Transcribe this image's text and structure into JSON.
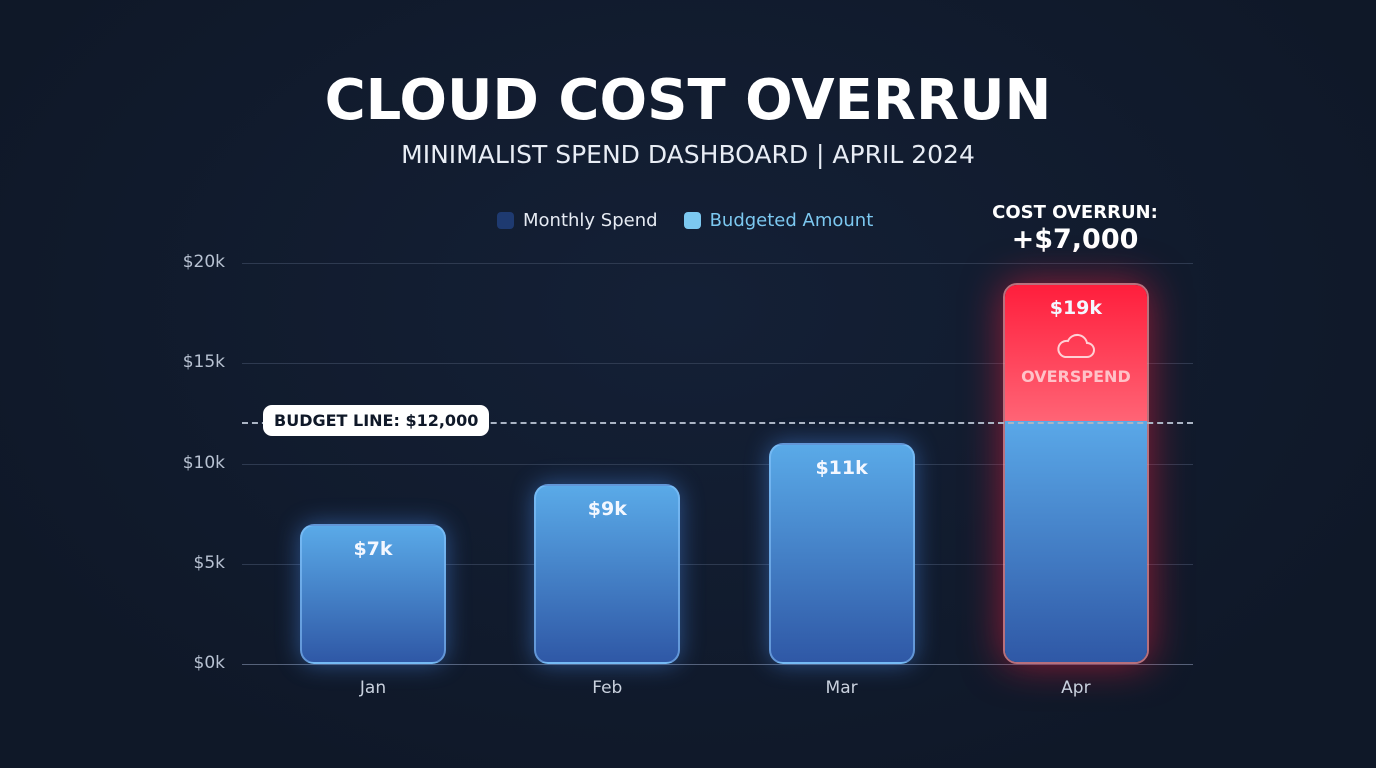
{
  "header": {
    "title": "CLOUD COST OVERRUN",
    "subtitle": "MINIMALIST SPEND DASHBOARD | APRIL 2024"
  },
  "callout": {
    "label": "COST OVERRUN:",
    "value": "+$7,000"
  },
  "budget_tag": "BUDGET LINE: $12,000",
  "overspend_label": "OVERSPEND",
  "overspend_icon": "cloud-icon",
  "colors": {
    "background": "#111a2b",
    "bar_blue_top": "#5aaae8",
    "bar_blue_bottom": "#2f58a6",
    "overspend_red": "#ff1e3c",
    "legend_monthly": "#1e3a70",
    "legend_budgeted": "#7cc8f0"
  },
  "chart_data": {
    "type": "bar",
    "title": "CLOUD COST OVERRUN",
    "subtitle": "MINIMALIST SPEND DASHBOARD | APRIL 2024",
    "categories": [
      "Jan",
      "Feb",
      "Mar",
      "Apr"
    ],
    "series": [
      {
        "name": "Monthly Spend",
        "values": [
          7000,
          9000,
          11000,
          19000
        ]
      }
    ],
    "legend": [
      "Monthly Spend",
      "Budgeted Amount"
    ],
    "legend_placement": "top",
    "data_labels": [
      "$7k",
      "$9k",
      "$11k",
      "$19k"
    ],
    "yticks": [
      0,
      5000,
      10000,
      15000,
      20000
    ],
    "ytick_labels": [
      "$0k",
      "$5k",
      "$10k",
      "$15k",
      "$20k"
    ],
    "ylim": [
      0,
      20000
    ],
    "grid": true,
    "budget_line": 12000,
    "xlabel": "",
    "ylabel": ""
  }
}
